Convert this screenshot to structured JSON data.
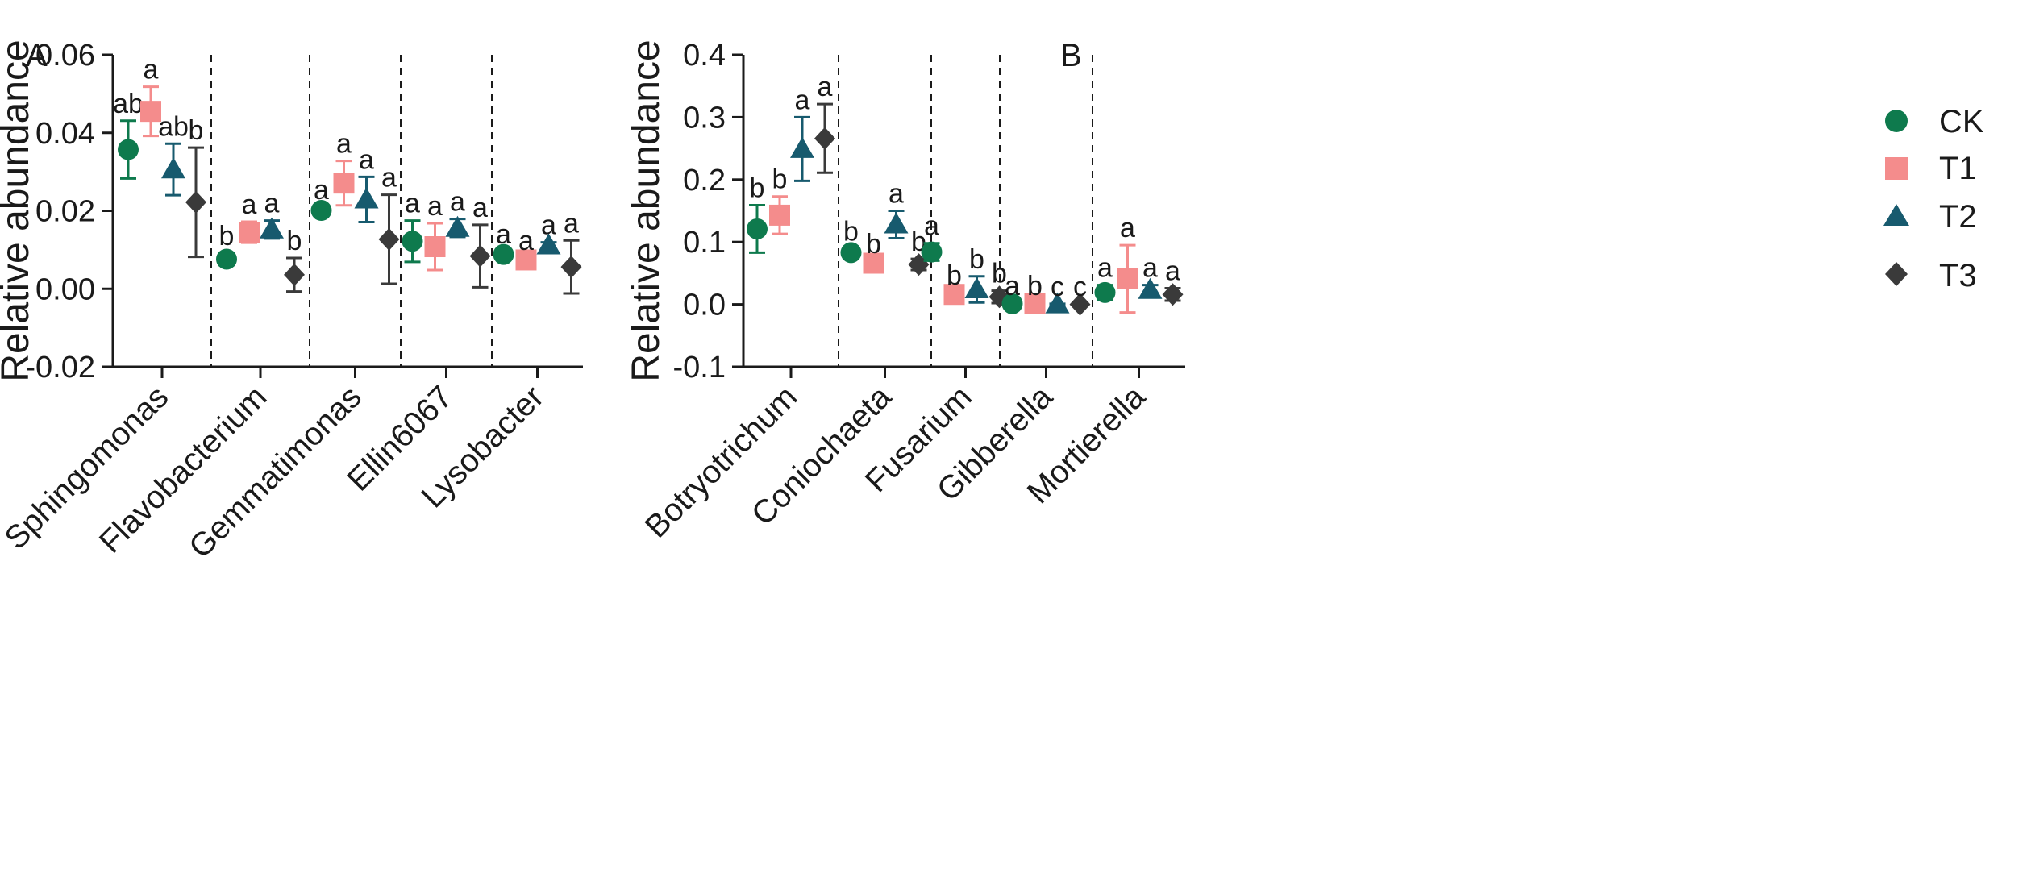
{
  "chart_data": [
    {
      "panel": "A",
      "type": "scatter",
      "ylabel": "Relative abundance",
      "ylim": [
        -0.02,
        0.06
      ],
      "yticks": [
        -0.02,
        0.0,
        0.02,
        0.04,
        0.06
      ],
      "ytick_labels": [
        "-0.02",
        "0.00",
        "0.02",
        "0.04",
        "0.06"
      ],
      "categories": [
        "Sphingomonas",
        "Flavobacterium",
        "Gemmatimonas",
        "Ellin6067",
        "Lysobacter"
      ],
      "series": [
        {
          "name": "CK",
          "mean": [
            0.0357,
            0.0076,
            0.0201,
            0.0122,
            0.0088
          ],
          "err": [
            0.0074,
            0.0015,
            0.0008,
            0.0053,
            0.0008
          ],
          "letters": [
            "ab",
            "b",
            "a",
            "a",
            "a"
          ]
        },
        {
          "name": "T1",
          "mean": [
            0.0455,
            0.0145,
            0.0271,
            0.0108,
            0.0074
          ],
          "err": [
            0.0063,
            0.0027,
            0.0057,
            0.006,
            0.0005
          ],
          "letters": [
            "a",
            "a",
            "a",
            "a",
            "a"
          ]
        },
        {
          "name": "T2",
          "mean": [
            0.0306,
            0.0152,
            0.0229,
            0.0156,
            0.0111
          ],
          "err": [
            0.0066,
            0.0023,
            0.0058,
            0.0023,
            0.0008
          ],
          "letters": [
            "ab",
            "a",
            "a",
            "a",
            "a"
          ]
        },
        {
          "name": "T3",
          "mean": [
            0.0222,
            0.0036,
            0.0127,
            0.0084,
            0.0056
          ],
          "err": [
            0.014,
            0.0043,
            0.0114,
            0.008,
            0.0068
          ],
          "letters": [
            "b",
            "b",
            "a",
            "a",
            "a"
          ]
        }
      ]
    },
    {
      "panel": "B",
      "type": "scatter",
      "ylabel": "Relative abundance",
      "ylim": [
        -0.1,
        0.4
      ],
      "yticks": [
        -0.1,
        0.0,
        0.1,
        0.2,
        0.3,
        0.4
      ],
      "ytick_labels": [
        "-0.1",
        "0.0",
        "0.1",
        "0.2",
        "0.3",
        "0.4"
      ],
      "categories": [
        "Botryotrichum",
        "Coniochaeta",
        "Fusarium",
        "Gibberella",
        "Mortierella"
      ],
      "series": [
        {
          "name": "CK",
          "mean": [
            0.121,
            0.083,
            0.084,
            0.001,
            0.019
          ],
          "err": [
            0.038,
            0.006,
            0.014,
            0.001,
            0.012
          ],
          "letters": [
            "b",
            "b",
            "a",
            "a",
            "a"
          ]
        },
        {
          "name": "T1",
          "mean": [
            0.143,
            0.066,
            0.016,
            0.001,
            0.041
          ],
          "err": [
            0.03,
            0.003,
            0.003,
            0.001,
            0.054
          ],
          "letters": [
            "b",
            "b",
            "b",
            "b",
            "a"
          ]
        },
        {
          "name": "T2",
          "mean": [
            0.249,
            0.128,
            0.024,
            0.0,
            0.023
          ],
          "err": [
            0.051,
            0.022,
            0.021,
            0.001,
            0.008
          ],
          "letters": [
            "a",
            "a",
            "b",
            "c",
            "a"
          ]
        },
        {
          "name": "T3",
          "mean": [
            0.266,
            0.064,
            0.012,
            0.0,
            0.016
          ],
          "err": [
            0.055,
            0.009,
            0.01,
            0.001,
            0.01
          ],
          "letters": [
            "a",
            "b",
            "b",
            "c",
            "a"
          ]
        }
      ]
    }
  ],
  "legend": {
    "entries": [
      {
        "name": "CK",
        "icon": "circle-marker-icon"
      },
      {
        "name": "T1",
        "icon": "square-marker-icon"
      },
      {
        "name": "T2",
        "icon": "triangle-marker-icon"
      },
      {
        "name": "T3",
        "icon": "diamond-marker-icon"
      }
    ]
  },
  "colors": {
    "CK": "#0e7a4d",
    "T1": "#f48c8c",
    "T2": "#175a6e",
    "T3": "#3a3a3a",
    "axis": "#1a1a1a"
  }
}
